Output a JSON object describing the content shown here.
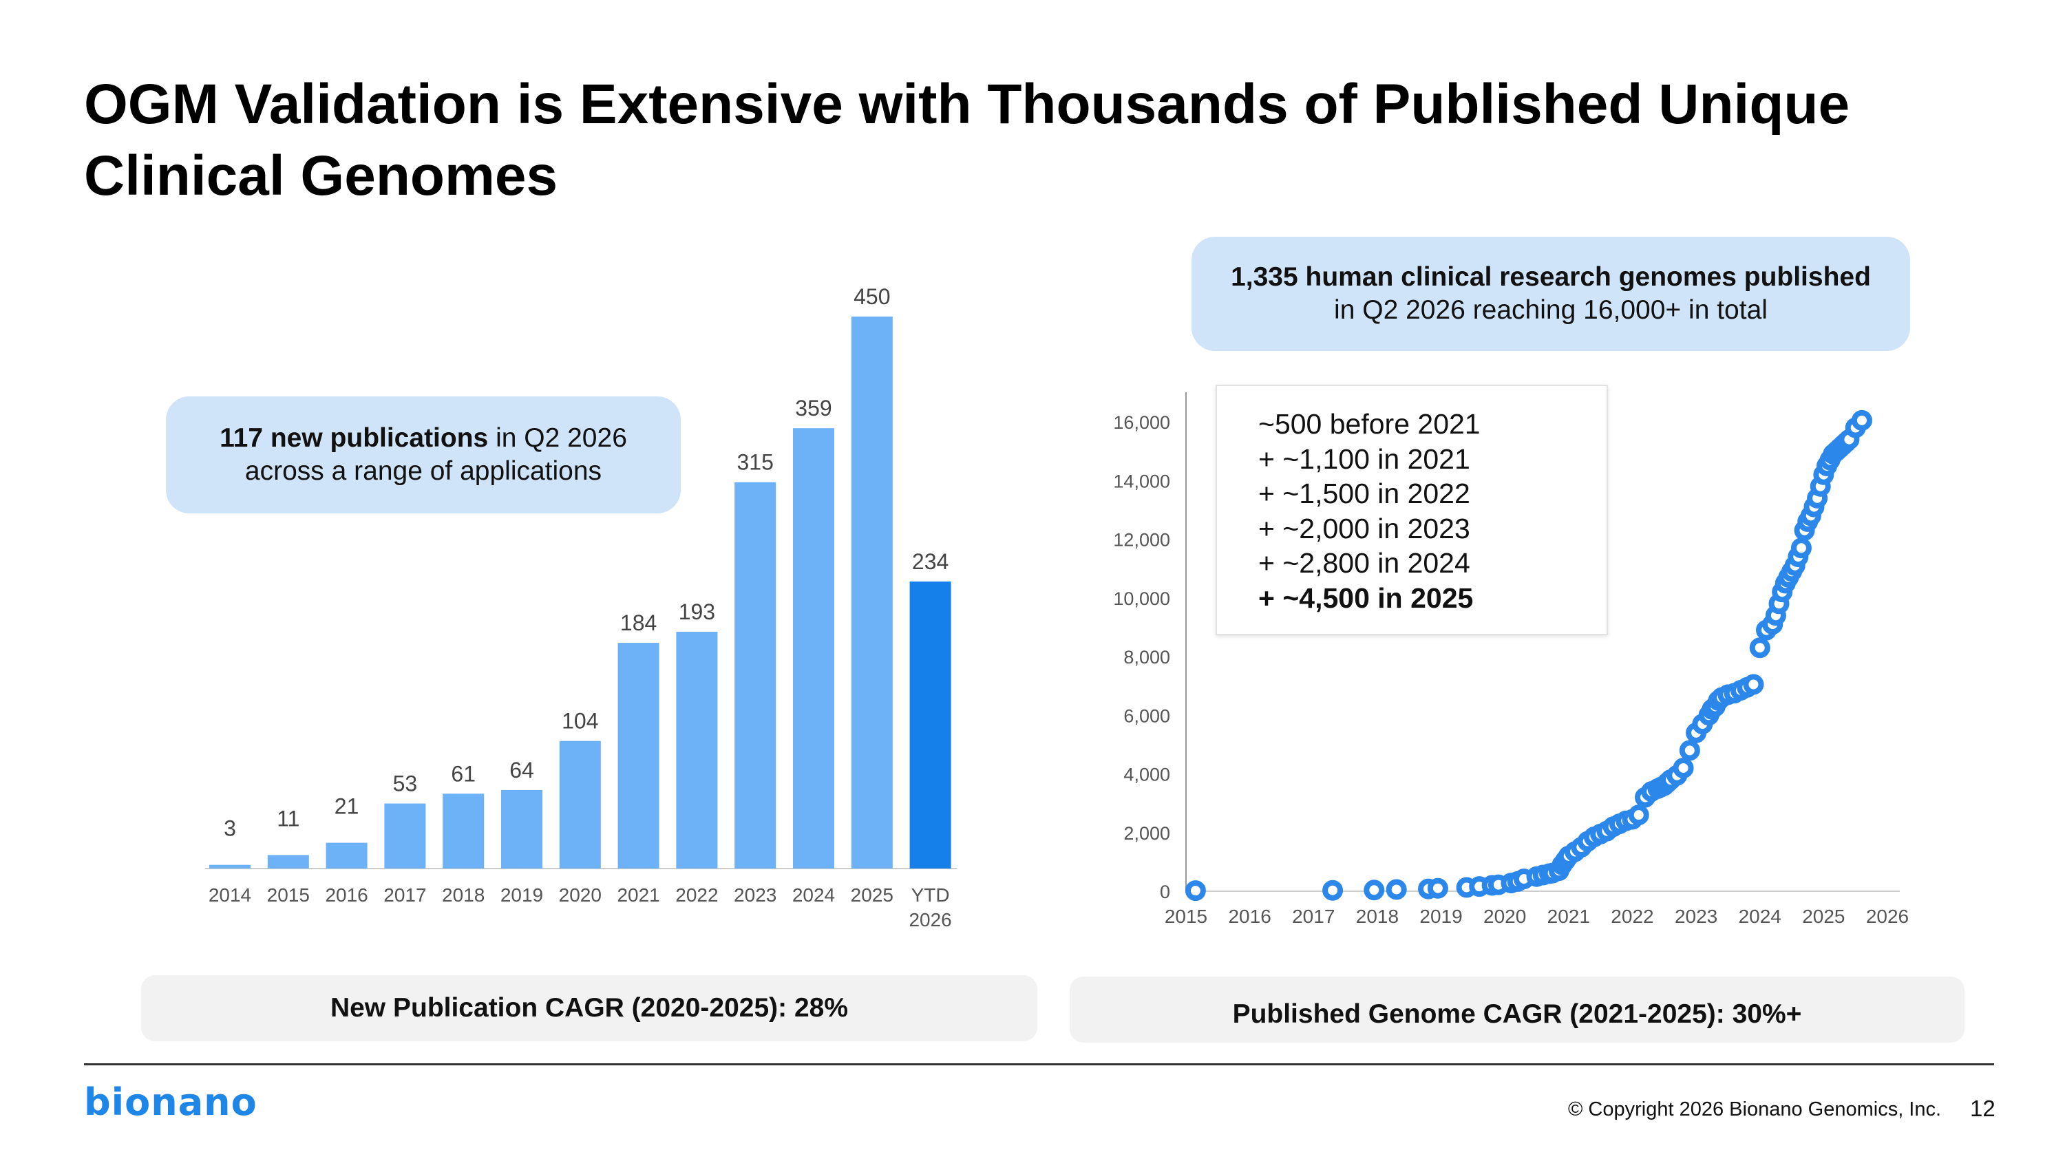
{
  "title": "OGM Validation is Extensive with Thousands of Published Unique Clinical Genomes",
  "left_callout": {
    "bold": "117 new publications",
    "line1_rest": " in Q2 2026",
    "line2": "across a range of applications"
  },
  "right_callout": {
    "line1": "1,335 human clinical research genomes published",
    "line2": "in Q2 2026 reaching 16,000+ in total"
  },
  "note_box": {
    "lines": [
      "~500 before 2021",
      "+ ~1,100 in 2021",
      "+ ~1,500 in 2022",
      "+ ~2,000 in 2023",
      "+ ~2,800 in 2024"
    ],
    "bold_line": "+ ~4,500 in 2025"
  },
  "left_cagr": "New Publication CAGR (2020-2025): 28%",
  "right_cagr": "Published Genome CAGR (2021-2025): 30%+",
  "copyright": "© Copyright 2026 Bionano Genomics, Inc.",
  "page_number": "12",
  "logo_text": "bionano",
  "colors": {
    "bar": "#6db1f6",
    "bar_highlight": "#1580ea",
    "scatter": "#2b87ea",
    "callout": "#cfe3f9"
  },
  "chart_data": [
    {
      "type": "bar",
      "categories": [
        "2014",
        "2015",
        "2016",
        "2017",
        "2018",
        "2019",
        "2020",
        "2021",
        "2022",
        "2023",
        "2024",
        "2025",
        "YTD\n2026"
      ],
      "values": [
        3,
        11,
        21,
        53,
        61,
        64,
        104,
        184,
        193,
        315,
        359,
        450,
        234
      ],
      "highlight_index": 12,
      "ylim": [
        0,
        470
      ],
      "title": "",
      "xlabel": "",
      "ylabel": ""
    },
    {
      "type": "scatter",
      "title": "",
      "xlabel": "",
      "ylabel": "",
      "xlim": [
        2015,
        2026
      ],
      "ylim": [
        0,
        16800
      ],
      "x_ticks": [
        "2015",
        "2016",
        "2017",
        "2018",
        "2019",
        "2020",
        "2021",
        "2022",
        "2023",
        "2024",
        "2025",
        "2026"
      ],
      "y_ticks": [
        "0",
        "2,000",
        "4,000",
        "6,000",
        "8,000",
        "10,000",
        "12,000",
        "14,000",
        "16,000"
      ],
      "x": [
        2015.15,
        2017.3,
        2017.95,
        2018.3,
        2018.8,
        2018.95,
        2019.4,
        2019.6,
        2019.8,
        2019.9,
        2020.1,
        2020.2,
        2020.3,
        2020.5,
        2020.6,
        2020.7,
        2020.75,
        2020.85,
        2020.9,
        2020.95,
        2021.0,
        2021.1,
        2021.2,
        2021.3,
        2021.4,
        2021.5,
        2021.6,
        2021.7,
        2021.8,
        2021.9,
        2022.0,
        2022.1,
        2022.2,
        2022.3,
        2022.4,
        2022.45,
        2022.5,
        2022.55,
        2022.6,
        2022.7,
        2022.8,
        2022.9,
        2023.0,
        2023.1,
        2023.2,
        2023.25,
        2023.3,
        2023.35,
        2023.4,
        2023.5,
        2023.6,
        2023.7,
        2023.8,
        2023.9,
        2024.0,
        2024.1,
        2024.2,
        2024.25,
        2024.3,
        2024.35,
        2024.4,
        2024.45,
        2024.5,
        2024.55,
        2024.6,
        2024.65,
        2024.7,
        2024.75,
        2024.8,
        2024.85,
        2024.9,
        2024.95,
        2025.0,
        2025.05,
        2025.1,
        2025.15,
        2025.2,
        2025.25,
        2025.3,
        2025.35,
        2025.4,
        2025.5,
        2025.6
      ],
      "y": [
        20,
        30,
        40,
        60,
        80,
        100,
        130,
        160,
        200,
        220,
        280,
        330,
        420,
        500,
        550,
        600,
        620,
        700,
        900,
        1050,
        1200,
        1350,
        1500,
        1700,
        1850,
        1950,
        2050,
        2200,
        2300,
        2400,
        2450,
        2600,
        3200,
        3400,
        3500,
        3550,
        3600,
        3700,
        3800,
        3950,
        4200,
        4800,
        5400,
        5700,
        6000,
        6200,
        6300,
        6500,
        6600,
        6700,
        6750,
        6850,
        6950,
        7050,
        8300,
        8900,
        9100,
        9400,
        9800,
        10200,
        10500,
        10700,
        10900,
        11100,
        11400,
        11700,
        12300,
        12600,
        12800,
        13100,
        13400,
        13800,
        14200,
        14500,
        14700,
        14900,
        15000,
        15100,
        15200,
        15300,
        15400,
        15800,
        16050
      ],
      "annotation": "note_box"
    }
  ]
}
